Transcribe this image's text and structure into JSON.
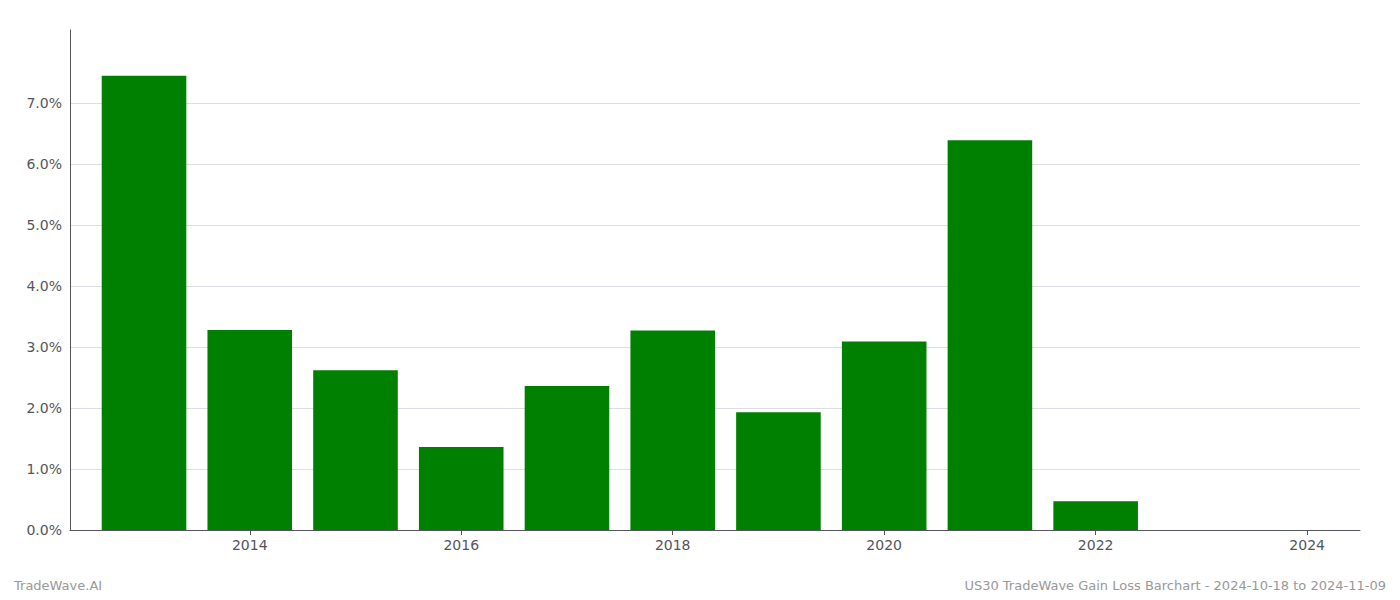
{
  "chart_data": {
    "type": "bar",
    "x": [
      2013,
      2014,
      2015,
      2016,
      2017,
      2018,
      2019,
      2020,
      2021,
      2022,
      2023
    ],
    "values": [
      0.0745,
      0.0328,
      0.0262,
      0.0136,
      0.0236,
      0.0327,
      0.0193,
      0.0309,
      0.0639,
      0.0047,
      0.0
    ],
    "color": "#008000",
    "xlim": [
      2012.3,
      2024.5
    ],
    "xticks": [
      2014,
      2016,
      2018,
      2020,
      2022,
      2024
    ],
    "ylim": [
      0.0,
      0.082
    ],
    "yticks": [
      {
        "value": 0.0,
        "label": "0.0%"
      },
      {
        "value": 0.01,
        "label": "1.0%"
      },
      {
        "value": 0.02,
        "label": "2.0%"
      },
      {
        "value": 0.03,
        "label": "3.0%"
      },
      {
        "value": 0.04,
        "label": "4.0%"
      },
      {
        "value": 0.05,
        "label": "5.0%"
      },
      {
        "value": 0.06,
        "label": "6.0%"
      },
      {
        "value": 0.07,
        "label": "7.0%"
      }
    ],
    "grid": true,
    "annotations": [
      "TradeWave.AI",
      "US30 TradeWave Gain Loss Barchart - 2024-10-18 to 2024-11-09"
    ]
  }
}
